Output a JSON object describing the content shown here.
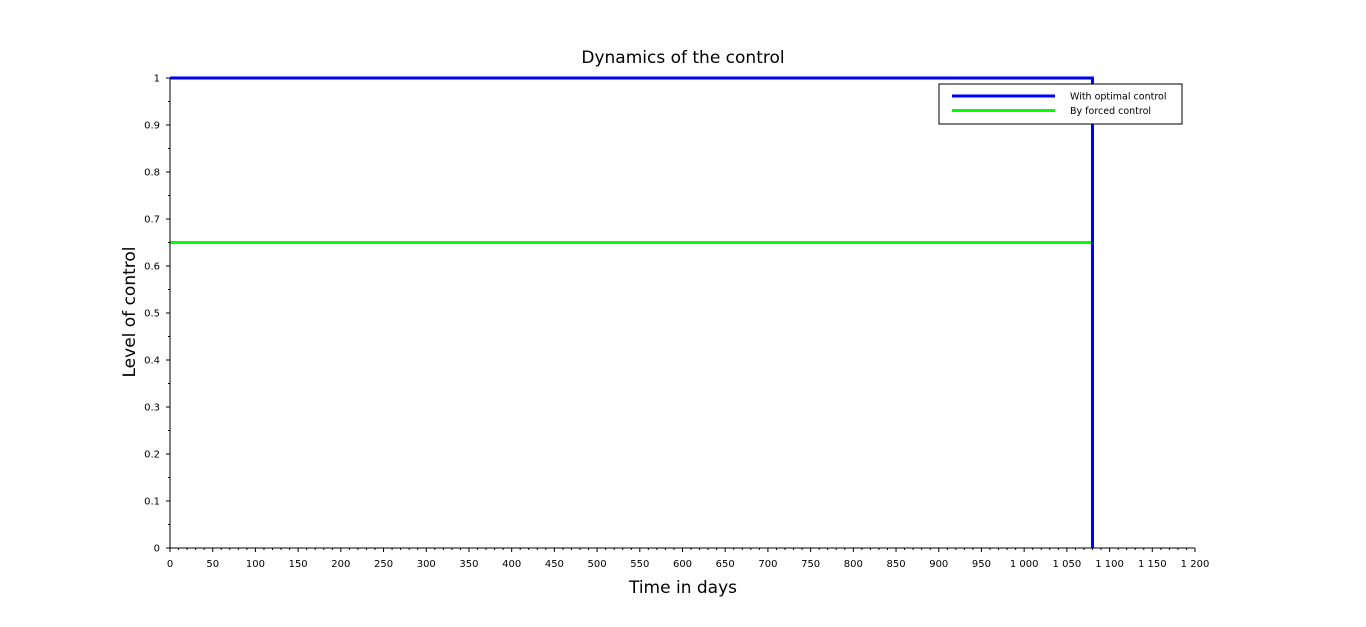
{
  "chart_data": {
    "type": "line",
    "title": "Dynamics of the control",
    "xlabel": "Time in days",
    "ylabel": "Level of control",
    "xlim": [
      0,
      1200
    ],
    "ylim": [
      0,
      1
    ],
    "x_ticks": [
      0,
      50,
      100,
      150,
      200,
      250,
      300,
      350,
      400,
      450,
      500,
      550,
      600,
      650,
      700,
      750,
      800,
      850,
      900,
      950,
      1000,
      1050,
      1100,
      1150,
      1200
    ],
    "x_tick_labels": [
      "0",
      "50",
      "100",
      "150",
      "200",
      "250",
      "300",
      "350",
      "400",
      "450",
      "500",
      "550",
      "600",
      "650",
      "700",
      "750",
      "800",
      "850",
      "900",
      "950",
      "1 000",
      "1 050",
      "1 100",
      "1 150",
      "1 200"
    ],
    "y_ticks": [
      0,
      0.1,
      0.2,
      0.3,
      0.4,
      0.5,
      0.6,
      0.7,
      0.8,
      0.9,
      1
    ],
    "y_tick_labels": [
      "0",
      "0.1",
      "0.2",
      "0.3",
      "0.4",
      "0.5",
      "0.6",
      "0.7",
      "0.8",
      "0.9",
      "1"
    ],
    "grid": false,
    "legend_position": "top-right",
    "series": [
      {
        "name": "With optimal control",
        "color": "#0000ff",
        "x": [
          0,
          1080,
          1080
        ],
        "y": [
          1,
          1,
          0
        ]
      },
      {
        "name": "By forced control",
        "color": "#00ff00",
        "x": [
          0,
          1080
        ],
        "y": [
          0.65,
          0.65
        ]
      }
    ]
  }
}
